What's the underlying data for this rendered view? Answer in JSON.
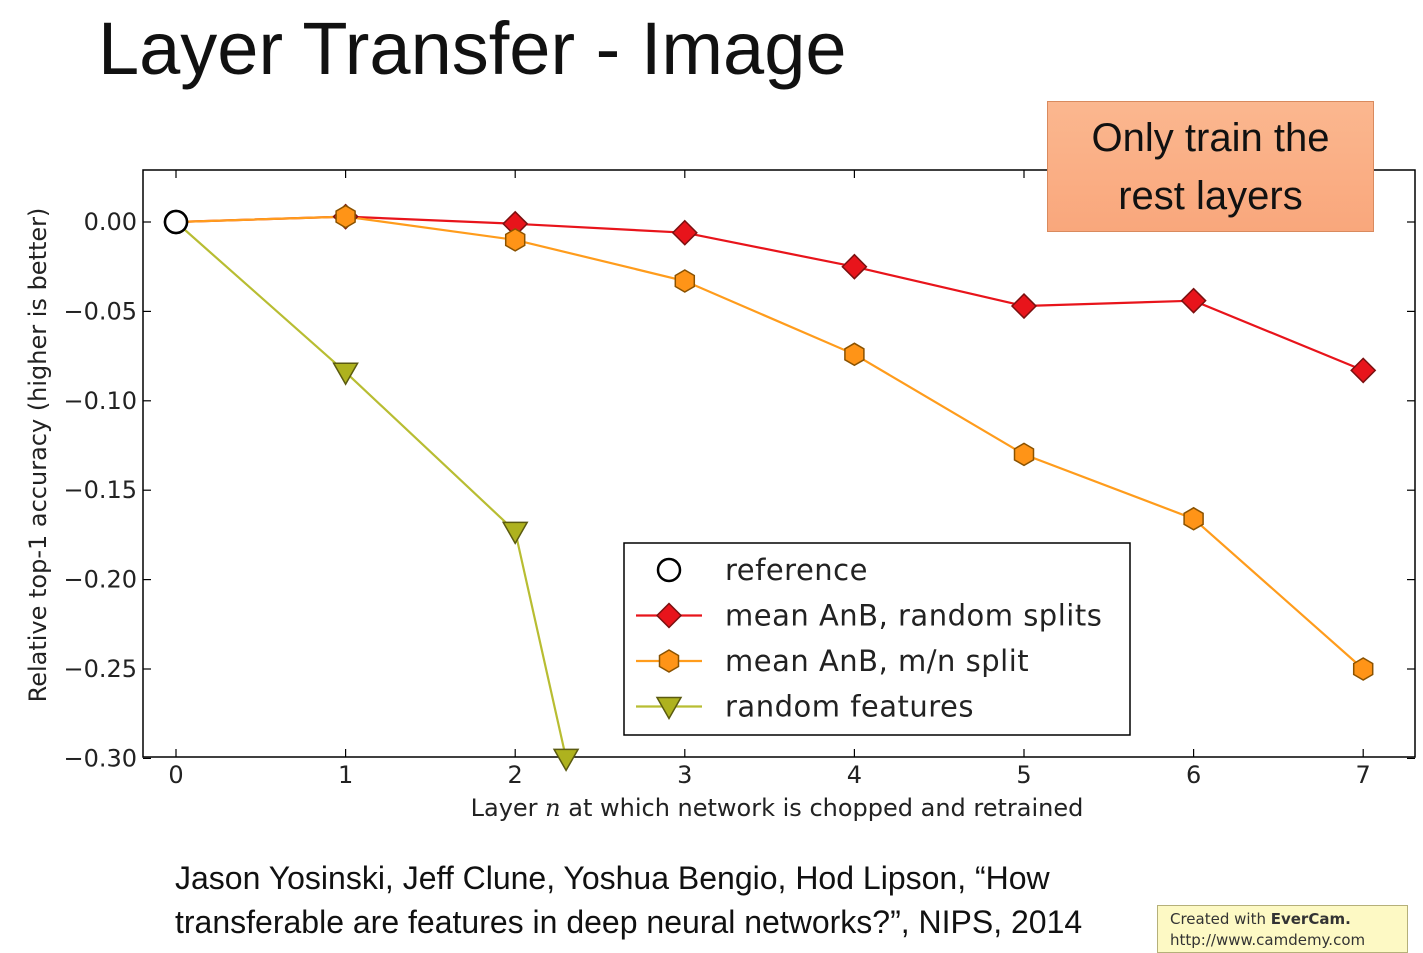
{
  "slide": {
    "title": "Layer Transfer - Image",
    "callout": "Only train the\nrest layers",
    "citation": "Jason Yosinski, Jeff Clune, Yoshua Bengio, Hod Lipson, “How transferable are features in deep neural networks?”, NIPS, 2014",
    "watermark_prefix": "Created with ",
    "watermark_brand": "EverCam.",
    "watermark_url": "http://www.camdemy.com"
  },
  "chart_data": {
    "type": "line",
    "xlabel_parts": [
      "Layer ",
      "n",
      " at which network is chopped and retrained"
    ],
    "ylabel": "Relative top-1 accuracy (higher is better)",
    "xlim": [
      -0.2,
      7.3
    ],
    "ylim": [
      -0.3,
      0.03
    ],
    "x_ticks": [
      0,
      1,
      2,
      3,
      4,
      5,
      6,
      7
    ],
    "x_tick_labels": [
      "0",
      "1",
      "2",
      "3",
      "4",
      "5",
      "6",
      "7"
    ],
    "y_ticks": [
      0.0,
      -0.05,
      -0.1,
      -0.15,
      -0.2,
      -0.25,
      -0.3
    ],
    "y_tick_labels": [
      "0.00",
      "−0.05",
      "−0.10",
      "−0.15",
      "−0.20",
      "−0.25",
      "−0.30"
    ],
    "grid": false,
    "legend_position": "lower-right",
    "series": [
      {
        "name": "reference",
        "marker": "circle-open",
        "color": "#000000",
        "fill": "#ffffff",
        "line": false,
        "x": [
          0
        ],
        "y": [
          0.0
        ]
      },
      {
        "name": "mean AnB, random splits",
        "marker": "diamond",
        "color": "#e8141b",
        "fill": "#e8141b",
        "line": true,
        "x": [
          0,
          1,
          2,
          3,
          4,
          5,
          6,
          7
        ],
        "y": [
          0.0,
          0.003,
          -0.001,
          -0.006,
          -0.025,
          -0.047,
          -0.044,
          -0.083
        ]
      },
      {
        "name": "mean AnB, m/n split",
        "marker": "hexagon",
        "color": "#ff9c1c",
        "fill": "#ff9417",
        "line": true,
        "x": [
          0,
          1,
          2,
          3,
          4,
          5,
          6,
          7
        ],
        "y": [
          0.0,
          0.003,
          -0.01,
          -0.033,
          -0.074,
          -0.13,
          -0.166,
          -0.25
        ]
      },
      {
        "name": "random features",
        "marker": "triangle-down",
        "color": "#b8bd32",
        "fill": "#aeb21e",
        "line": true,
        "x": [
          0,
          1,
          2,
          2.3
        ],
        "y": [
          0.0,
          -0.084,
          -0.173,
          -0.3
        ]
      }
    ]
  }
}
